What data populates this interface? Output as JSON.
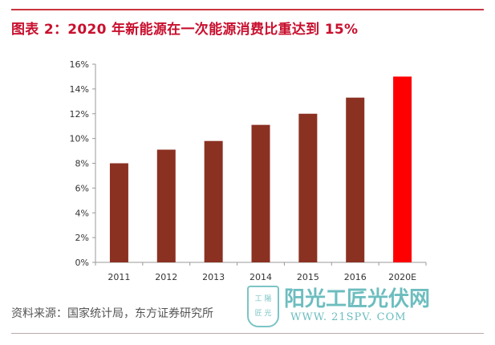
{
  "title": "图表 2：2020 年新能源在一次能源消费比重达到 15%",
  "source": "资料来源：国家统计局，东方证券研究所",
  "watermark": {
    "badge": "工陽匠光",
    "name": "阳光工匠光伏网",
    "url": "WWW. 21SPV. COM"
  },
  "colors": {
    "bar": "#8b3122",
    "highlight": "#ff0000",
    "title": "#c8102e"
  },
  "chart_data": {
    "type": "bar",
    "title": "2020 年新能源在一次能源消费比重达到 15%",
    "categories": [
      "2011",
      "2012",
      "2013",
      "2014",
      "2015",
      "2016",
      "2020E"
    ],
    "values": [
      8.0,
      9.1,
      9.8,
      11.1,
      12.0,
      13.3,
      15.0
    ],
    "highlight_index": 6,
    "ylim": [
      0,
      16
    ],
    "yticks": [
      0,
      2,
      4,
      6,
      8,
      10,
      12,
      14,
      16
    ],
    "ytick_labels": [
      "0%",
      "2%",
      "4%",
      "6%",
      "8%",
      "10%",
      "12%",
      "14%",
      "16%"
    ],
    "xlabel": "",
    "ylabel": "",
    "grid": false,
    "legend": "none"
  }
}
